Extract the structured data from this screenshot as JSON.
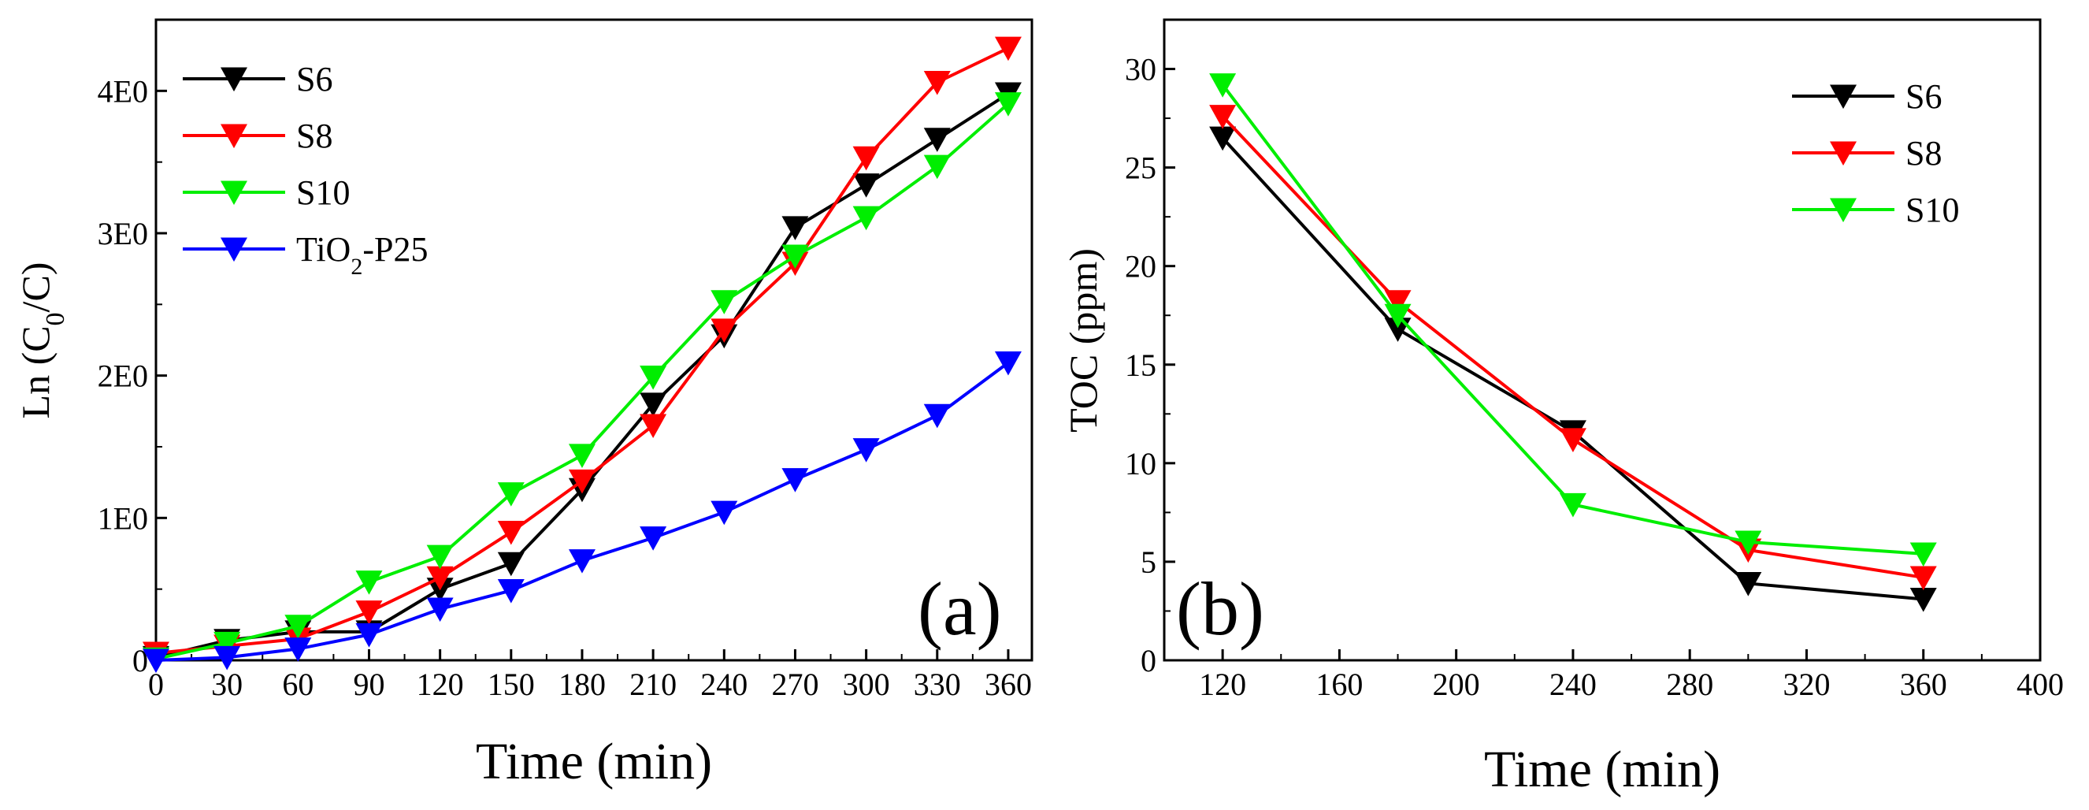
{
  "chart_data": [
    {
      "type": "line",
      "panel_label": "(a)",
      "xlabel": "Time (min)",
      "ylabel": {
        "prefix": "Ln (C",
        "subscript": "0",
        "suffix": "/C)"
      },
      "xlim": [
        0,
        370
      ],
      "ylim": [
        0,
        4.5
      ],
      "xticks": [
        0,
        30,
        60,
        90,
        120,
        150,
        180,
        210,
        240,
        270,
        300,
        330,
        360
      ],
      "yticks": [
        {
          "value": 0,
          "label": "0"
        },
        {
          "value": 1,
          "label": "1E0"
        },
        {
          "value": 2,
          "label": "2E0"
        },
        {
          "value": 3,
          "label": "3E0"
        },
        {
          "value": 4,
          "label": "4E0"
        }
      ],
      "legend_position": "top-left",
      "x": [
        0,
        30,
        60,
        90,
        120,
        150,
        180,
        210,
        240,
        270,
        300,
        330,
        360
      ],
      "series": [
        {
          "name": "S6",
          "color": "#000000",
          "values": [
            0.02,
            0.14,
            0.2,
            0.2,
            0.5,
            0.68,
            1.2,
            1.8,
            2.28,
            3.04,
            3.34,
            3.66,
            3.98
          ]
        },
        {
          "name": "S8",
          "color": "#ff0000",
          "values": [
            0.05,
            0.1,
            0.15,
            0.34,
            0.58,
            0.9,
            1.26,
            1.65,
            2.32,
            2.79,
            3.53,
            4.06,
            4.3
          ]
        },
        {
          "name": "S10",
          "color": "#00ee00",
          "values": [
            0.01,
            0.12,
            0.24,
            0.55,
            0.73,
            1.17,
            1.44,
            1.99,
            2.52,
            2.84,
            3.11,
            3.47,
            3.91
          ]
        },
        {
          "name": "TiO2-P25",
          "name_parts": {
            "main": "TiO",
            "sub": "2",
            "rest": "-P25"
          },
          "color": "#0000ff",
          "values": [
            0.0,
            0.02,
            0.08,
            0.18,
            0.36,
            0.49,
            0.7,
            0.86,
            1.04,
            1.27,
            1.48,
            1.72,
            2.09
          ]
        }
      ]
    },
    {
      "type": "line",
      "panel_label": "(b)",
      "xlabel": "Time (min)",
      "ylabel": "TOC (ppm)",
      "xlim": [
        100,
        400
      ],
      "ylim": [
        0,
        32.5
      ],
      "xticks": [
        120,
        160,
        200,
        240,
        280,
        320,
        360,
        400
      ],
      "yticks": [
        {
          "value": 0,
          "label": "0"
        },
        {
          "value": 5,
          "label": "5"
        },
        {
          "value": 10,
          "label": "10"
        },
        {
          "value": 15,
          "label": "15"
        },
        {
          "value": 20,
          "label": "20"
        },
        {
          "value": 25,
          "label": "25"
        },
        {
          "value": 30,
          "label": "30"
        }
      ],
      "legend_position": "top-right",
      "x": [
        120,
        180,
        240,
        300,
        360
      ],
      "series": [
        {
          "name": "S6",
          "color": "#000000",
          "values": [
            26.5,
            16.8,
            11.6,
            3.9,
            3.1
          ]
        },
        {
          "name": "S8",
          "color": "#ff0000",
          "values": [
            27.6,
            18.2,
            11.2,
            5.6,
            4.2
          ]
        },
        {
          "name": "S10",
          "color": "#00ee00",
          "values": [
            29.2,
            17.5,
            7.9,
            6.0,
            5.4
          ]
        }
      ]
    }
  ]
}
